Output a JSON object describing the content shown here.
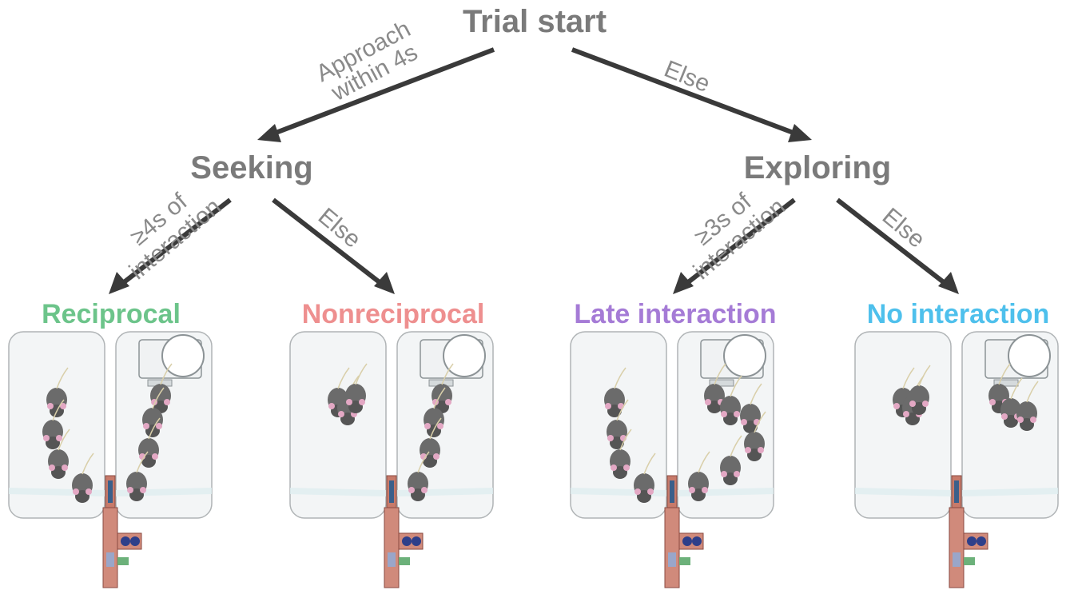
{
  "nodes": {
    "root": "Trial start",
    "seeking": "Seeking",
    "exploring": "Exploring"
  },
  "edges": {
    "approach_line1": "Approach",
    "approach_line2": "within 4s",
    "else_top": "Else",
    "seek_interaction_line1": "≥4s of",
    "seek_interaction_line2": "interaction",
    "seek_else": "Else",
    "explore_interaction_line1": "≥3s of",
    "explore_interaction_line2": "interaction",
    "explore_else": "Else"
  },
  "outcomes": [
    {
      "label": "Reciprocal",
      "color": "#6cc48a"
    },
    {
      "label": "Nonreciprocal",
      "color": "#ee8f8f"
    },
    {
      "label": "Late interaction",
      "color": "#a57bd6"
    },
    {
      "label": "No interaction",
      "color": "#4ec0ec"
    }
  ],
  "colors": {
    "text": "#7a7a7a",
    "arrow": "#3a3a3a",
    "mouse": "#5a5a5a",
    "tube": "#c77a6a"
  }
}
